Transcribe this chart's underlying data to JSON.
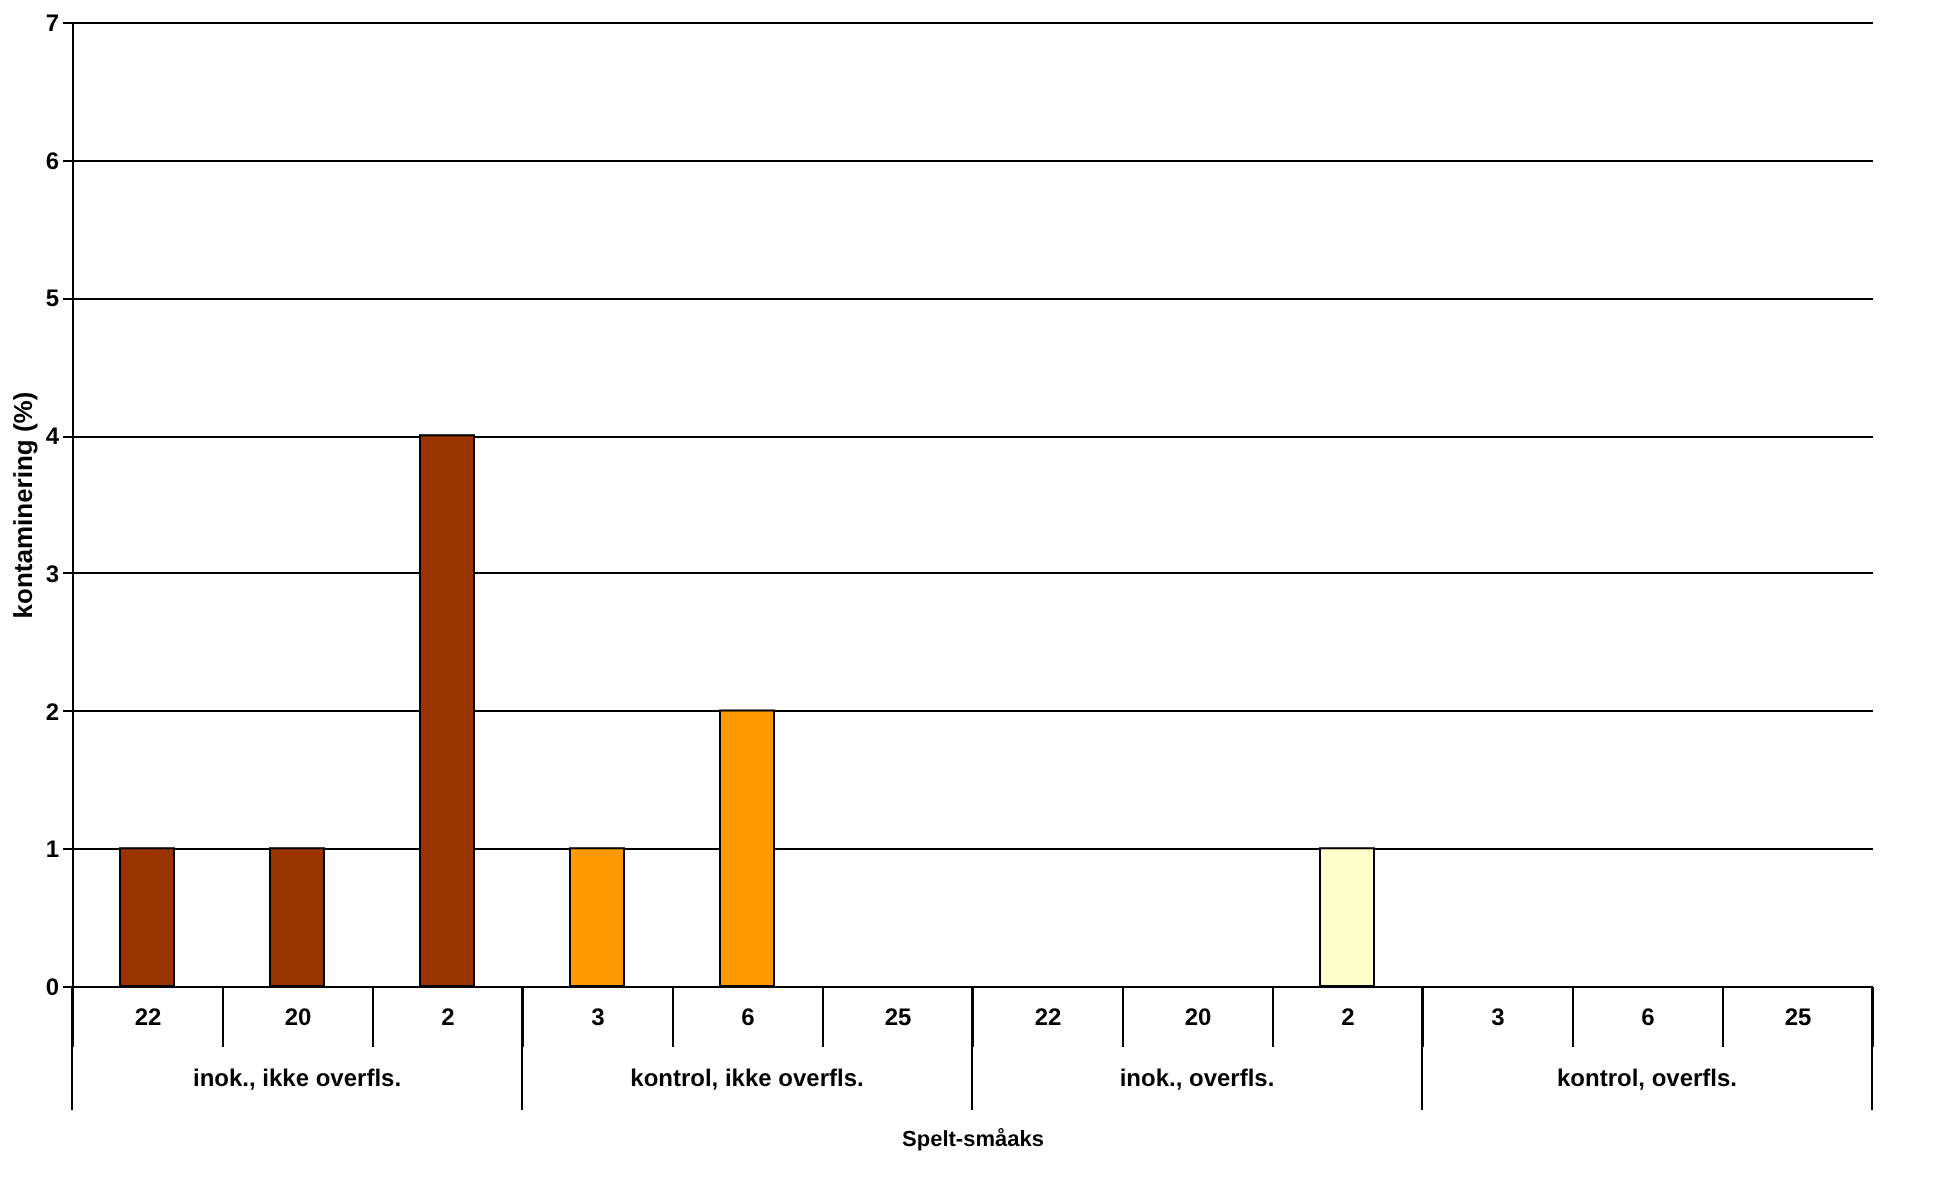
{
  "chart_data": {
    "type": "bar",
    "xlabel": "Spelt-småaks",
    "ylabel": "kontaminering (%)",
    "categories": [
      "22",
      "20",
      "2",
      "3",
      "6",
      "25",
      "22",
      "20",
      "2",
      "3",
      "6",
      "25"
    ],
    "values": [
      1,
      1,
      4,
      1,
      2,
      0,
      0,
      0,
      1,
      0,
      0,
      0
    ],
    "colors": [
      "#993300",
      "#993300",
      "#993300",
      "#ff9900",
      "#ff9900",
      "#ff9900",
      "#ffffcc",
      "#ffffcc",
      "#ffffcc",
      "#ffffcc",
      "#ffffcc",
      "#ffffcc"
    ],
    "annotations": [
      "inok., ikke overfls.",
      "kontrol, ikke overfls.",
      "inok., overfls.",
      "kontrol, overfls."
    ],
    "ylim": [
      0,
      7
    ],
    "yticks": [
      0,
      1,
      2,
      3,
      4,
      5,
      6,
      7
    ],
    "grid": "y"
  }
}
